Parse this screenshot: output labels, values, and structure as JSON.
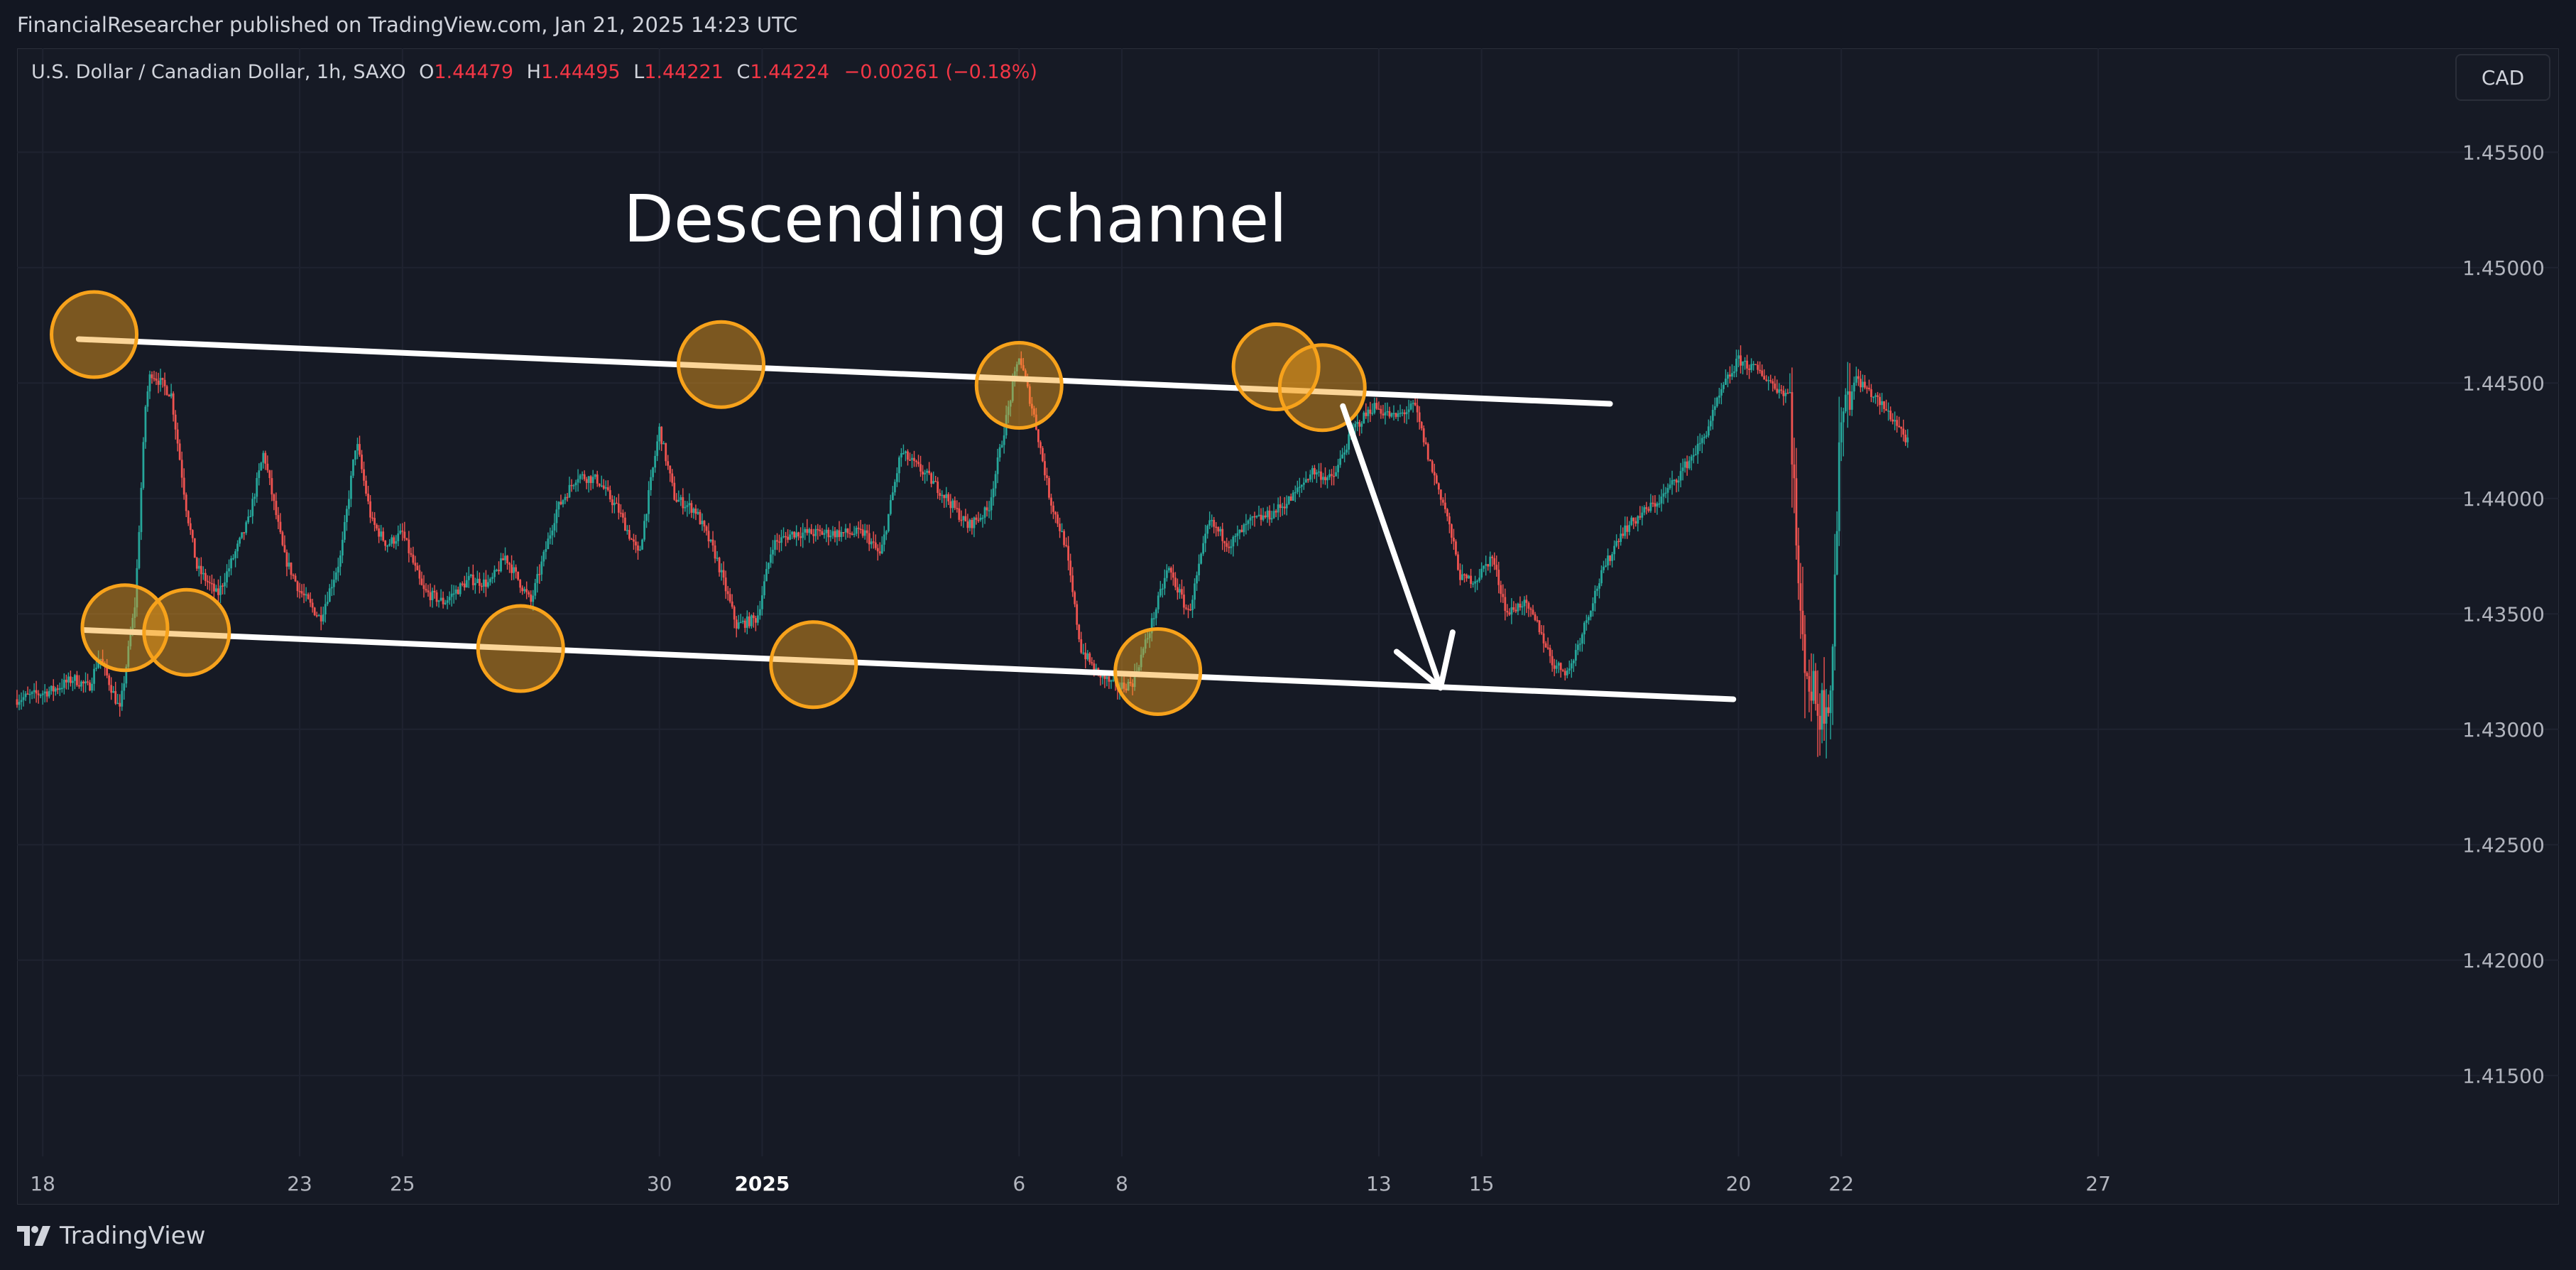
{
  "header": {
    "published_text": "FinancialResearcher published on TradingView.com, Jan 21, 2025 14:23 UTC"
  },
  "legend": {
    "symbol": "U.S. Dollar / Canadian Dollar, 1h, SAXO",
    "o_label": "O",
    "o_value": "1.44479",
    "h_label": "H",
    "h_value": "1.44495",
    "l_label": "L",
    "l_value": "1.44221",
    "c_label": "C",
    "c_value": "1.44224",
    "change": "−0.00261 (−0.18%)"
  },
  "currency_badge": "CAD",
  "annotation_title": "Descending channel",
  "footer": {
    "brand": "TradingView"
  },
  "colors": {
    "background": "#131722",
    "up": "#26a69a",
    "down": "#ef5350",
    "channel": "#ffffff",
    "marker": "#f7a21b",
    "grid": "#1f2330"
  },
  "chart_data": {
    "type": "candlestick",
    "title": "",
    "xlabel": "",
    "ylabel": "",
    "x_ticks": [
      {
        "label": "18",
        "day": 0
      },
      {
        "label": "23",
        "day": 5
      },
      {
        "label": "25",
        "day": 7
      },
      {
        "label": "30",
        "day": 12
      },
      {
        "label": "2025",
        "day": 14
      },
      {
        "label": "6",
        "day": 19
      },
      {
        "label": "8",
        "day": 21
      },
      {
        "label": "13",
        "day": 26
      },
      {
        "label": "15",
        "day": 28
      },
      {
        "label": "20",
        "day": 33
      },
      {
        "label": "22",
        "day": 35
      },
      {
        "label": "27",
        "day": 40
      }
    ],
    "x_range_days": [
      -0.5,
      46.7
    ],
    "y_ticks": [
      1.455,
      1.45,
      1.445,
      1.44,
      1.435,
      1.43,
      1.425,
      1.42,
      1.415
    ],
    "ylim": [
      1.4115,
      1.4595
    ],
    "grid": true,
    "series": [
      {
        "price_path": [
          [
            -0.5,
            1.4313
          ],
          [
            0.2,
            1.4317
          ],
          [
            0.6,
            1.4322
          ],
          [
            0.9,
            1.4318
          ],
          [
            1.1,
            1.4332
          ],
          [
            1.5,
            1.4308
          ],
          [
            1.8,
            1.4355
          ],
          [
            2.0,
            1.444
          ],
          [
            2.1,
            1.4455
          ],
          [
            2.5,
            1.4445
          ],
          [
            2.8,
            1.4395
          ],
          [
            3.0,
            1.437
          ],
          [
            3.4,
            1.4358
          ],
          [
            4.0,
            1.439
          ],
          [
            4.3,
            1.442
          ],
          [
            4.7,
            1.4375
          ],
          [
            5.0,
            1.436
          ],
          [
            5.4,
            1.4348
          ],
          [
            5.8,
            1.4375
          ],
          [
            6.1,
            1.4425
          ],
          [
            6.4,
            1.439
          ],
          [
            6.7,
            1.438
          ],
          [
            7.0,
            1.4385
          ],
          [
            7.4,
            1.436
          ],
          [
            7.8,
            1.4355
          ],
          [
            8.3,
            1.4365
          ],
          [
            8.7,
            1.4363
          ],
          [
            9.0,
            1.4375
          ],
          [
            9.5,
            1.4355
          ],
          [
            10.0,
            1.4395
          ],
          [
            10.4,
            1.441
          ],
          [
            10.8,
            1.4408
          ],
          [
            11.2,
            1.4395
          ],
          [
            11.6,
            1.4375
          ],
          [
            12.0,
            1.443
          ],
          [
            12.3,
            1.44
          ],
          [
            12.7,
            1.4395
          ],
          [
            13.1,
            1.4375
          ],
          [
            13.5,
            1.4345
          ],
          [
            13.9,
            1.4348
          ],
          [
            14.2,
            1.438
          ],
          [
            14.6,
            1.4385
          ],
          [
            15.0,
            1.4385
          ],
          [
            15.5,
            1.4385
          ],
          [
            16.0,
            1.4385
          ],
          [
            16.3,
            1.4375
          ],
          [
            16.7,
            1.442
          ],
          [
            17.2,
            1.441
          ],
          [
            17.6,
            1.44
          ],
          [
            18.0,
            1.4388
          ],
          [
            18.4,
            1.4395
          ],
          [
            18.8,
            1.444
          ],
          [
            19.0,
            1.4462
          ],
          [
            19.3,
            1.4435
          ],
          [
            19.6,
            1.44
          ],
          [
            19.9,
            1.438
          ],
          [
            20.2,
            1.4335
          ],
          [
            20.5,
            1.4325
          ],
          [
            20.9,
            1.4318
          ],
          [
            21.2,
            1.432
          ],
          [
            21.5,
            1.434
          ],
          [
            21.9,
            1.437
          ],
          [
            22.3,
            1.435
          ],
          [
            22.7,
            1.439
          ],
          [
            23.1,
            1.438
          ],
          [
            23.5,
            1.439
          ],
          [
            23.9,
            1.4393
          ],
          [
            24.3,
            1.44
          ],
          [
            24.7,
            1.4412
          ],
          [
            25.1,
            1.4408
          ],
          [
            25.5,
            1.443
          ],
          [
            25.9,
            1.444
          ],
          [
            26.3,
            1.4435
          ],
          [
            26.7,
            1.444
          ],
          [
            27.0,
            1.4415
          ],
          [
            27.3,
            1.4395
          ],
          [
            27.6,
            1.4365
          ],
          [
            27.9,
            1.4365
          ],
          [
            28.2,
            1.4375
          ],
          [
            28.5,
            1.435
          ],
          [
            28.8,
            1.4355
          ],
          [
            29.1,
            1.4345
          ],
          [
            29.4,
            1.4328
          ],
          [
            29.7,
            1.4325
          ],
          [
            30.0,
            1.4345
          ],
          [
            30.3,
            1.4365
          ],
          [
            30.7,
            1.4385
          ],
          [
            31.1,
            1.4393
          ],
          [
            31.5,
            1.44
          ],
          [
            31.9,
            1.4412
          ],
          [
            32.3,
            1.4425
          ],
          [
            32.7,
            1.4448
          ],
          [
            33.0,
            1.446
          ],
          [
            33.4,
            1.4455
          ],
          [
            33.8,
            1.4447
          ],
          [
            34.0,
            1.4445
          ],
          [
            34.2,
            1.4345
          ],
          [
            34.4,
            1.4318
          ],
          [
            34.6,
            1.4308
          ],
          [
            34.8,
            1.432
          ],
          [
            35.0,
            1.444
          ],
          [
            35.3,
            1.4452
          ],
          [
            35.6,
            1.4445
          ],
          [
            35.8,
            1.444
          ],
          [
            36.1,
            1.4432
          ],
          [
            36.3,
            1.4424
          ]
        ]
      }
    ],
    "channel_upper": [
      [
        0.7,
        1.4469
      ],
      [
        30.5,
        1.4441
      ]
    ],
    "channel_lower": [
      [
        0.8,
        1.4343
      ],
      [
        32.9,
        1.4313
      ]
    ],
    "touch_points": [
      [
        1.0,
        1.4471
      ],
      [
        1.6,
        1.4344
      ],
      [
        2.8,
        1.4342
      ],
      [
        9.3,
        1.4335
      ],
      [
        13.2,
        1.4458
      ],
      [
        15.0,
        1.4328
      ],
      [
        19.0,
        1.4449
      ],
      [
        21.7,
        1.4325
      ],
      [
        24.0,
        1.4457
      ],
      [
        24.9,
        1.4448
      ]
    ],
    "arrow": [
      [
        25.3,
        1.444
      ],
      [
        27.2,
        1.4318
      ]
    ]
  }
}
